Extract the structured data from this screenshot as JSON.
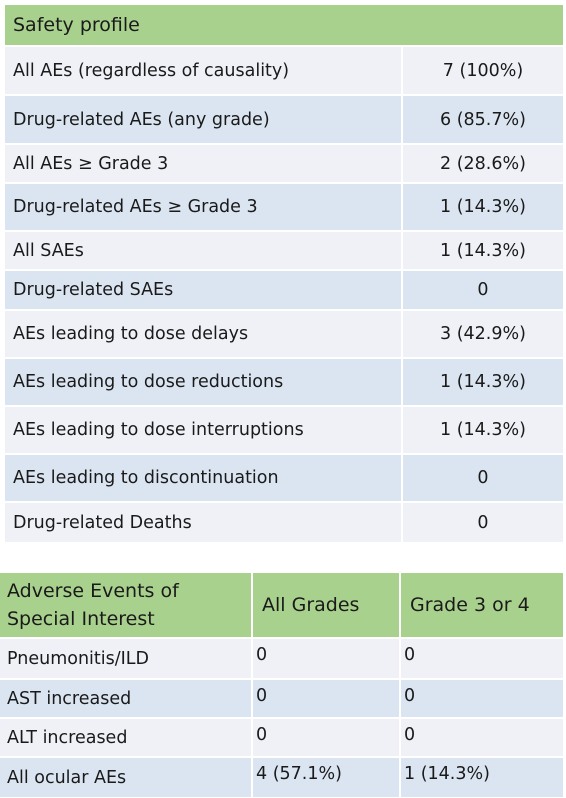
{
  "safety_profile": {
    "title": "Safety profile",
    "rows": [
      {
        "label": "All AEs (regardless of causality)",
        "value": "7 (100%)"
      },
      {
        "label": "Drug-related AEs (any grade)",
        "value": "6 (85.7%)"
      },
      {
        "label": "All AEs ≥ Grade 3",
        "value": "2 (28.6%)"
      },
      {
        "label": "Drug-related AEs ≥ Grade 3",
        "value": "1 (14.3%)"
      },
      {
        "label": "All SAEs",
        "value": "1 (14.3%)"
      },
      {
        "label": "Drug-related SAEs",
        "value": "0"
      },
      {
        "label": "AEs leading to dose delays",
        "value": "3 (42.9%)"
      },
      {
        "label": "AEs leading to dose reductions",
        "value": "1 (14.3%)"
      },
      {
        "label": "AEs leading to dose interruptions",
        "value": "1 (14.3%)"
      },
      {
        "label": "AEs leading to discontinuation",
        "value": "0"
      },
      {
        "label": "Drug-related Deaths",
        "value": "0"
      }
    ]
  },
  "special_interest": {
    "headers": {
      "col0_line1": "Adverse Events of",
      "col0_line2": "Special Interest",
      "col1": "All Grades",
      "col2": "Grade 3 or 4"
    },
    "rows": [
      {
        "event": "Pneumonitis/ILD",
        "all_grades": "0",
        "grade_3_4": "0"
      },
      {
        "event": "AST increased",
        "all_grades": "0",
        "grade_3_4": "0"
      },
      {
        "event": "ALT increased",
        "all_grades": "0",
        "grade_3_4": "0"
      },
      {
        "event": "All ocular AEs",
        "all_grades": "4 (57.1%)",
        "grade_3_4": "1 (14.3%)"
      }
    ]
  },
  "colors": {
    "header_green": "#a9d18e",
    "row_light": "#eff1f7",
    "row_dark": "#dbe5f1"
  }
}
